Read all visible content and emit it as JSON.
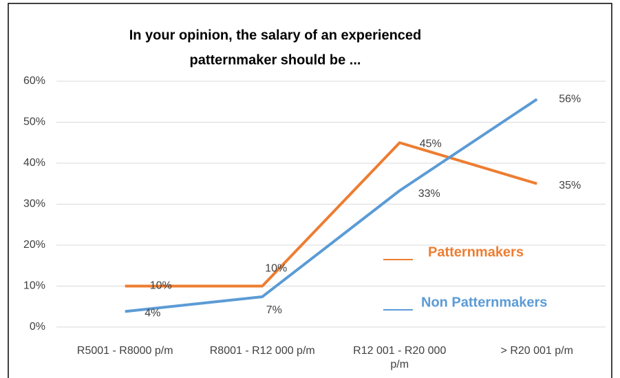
{
  "chart_data": {
    "type": "line",
    "title": [
      "In your opinion, the salary of an experienced",
      "patternmaker should be ..."
    ],
    "categories": [
      "R5001 - R8000 p/m",
      "R8001 - R12 000 p/m",
      "R12 001 - R20 000 p/m",
      "> R20 001 p/m"
    ],
    "series": [
      {
        "name": "Patternmakers",
        "color": "#ED7D31",
        "values": [
          10,
          10,
          45,
          35
        ],
        "value_labels": [
          "10%",
          "10%",
          "45%",
          "35%"
        ]
      },
      {
        "name": "Non Patternmakers",
        "color": "#5B9BD5",
        "values": [
          3.8,
          7.4,
          33.3,
          55.6
        ],
        "value_labels": [
          "4%",
          "7%",
          "33%",
          "56%"
        ]
      }
    ],
    "ylim": [
      0,
      60
    ],
    "yticks": [
      {
        "value": 0,
        "label": "0%"
      },
      {
        "value": 10,
        "label": "10%"
      },
      {
        "value": 20,
        "label": "20%"
      },
      {
        "value": 30,
        "label": "30%"
      },
      {
        "value": 40,
        "label": "40%"
      },
      {
        "value": 50,
        "label": "50%"
      },
      {
        "value": 60,
        "label": "60%"
      }
    ],
    "grid": true
  }
}
